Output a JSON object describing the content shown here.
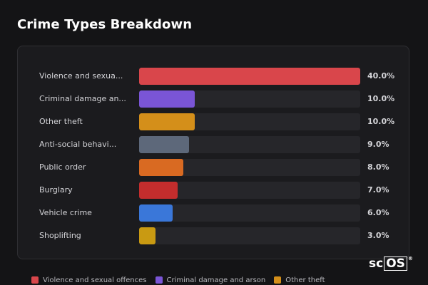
{
  "chart_data": {
    "type": "bar",
    "orientation": "horizontal",
    "title": "Crime Types Breakdown",
    "xlim": [
      0,
      40
    ],
    "categories": [
      "Violence and sexua...",
      "Criminal damage an...",
      "Other theft",
      "Anti-social behavi...",
      "Public order",
      "Burglary",
      "Vehicle crime",
      "Shoplifting"
    ],
    "values": [
      40.0,
      10.0,
      10.0,
      9.0,
      8.0,
      7.0,
      6.0,
      3.0
    ],
    "value_labels": [
      "40.0%",
      "10.0%",
      "10.0%",
      "9.0%",
      "8.0%",
      "7.0%",
      "6.0%",
      "3.0%"
    ],
    "colors": [
      "#d9464b",
      "#7a55d6",
      "#d48f1a",
      "#5d687a",
      "#d96a22",
      "#c42d2d",
      "#3a77d9",
      "#c99a12"
    ],
    "legend": [
      {
        "label": "Violence and sexual offences",
        "color": "#d9464b"
      },
      {
        "label": "Criminal damage and arson",
        "color": "#7a55d6"
      },
      {
        "label": "Other theft",
        "color": "#d48f1a"
      }
    ],
    "legend_position": "bottom",
    "grid": false
  },
  "brand": {
    "prefix": "sc",
    "boxed": "OS",
    "mark": "®"
  }
}
